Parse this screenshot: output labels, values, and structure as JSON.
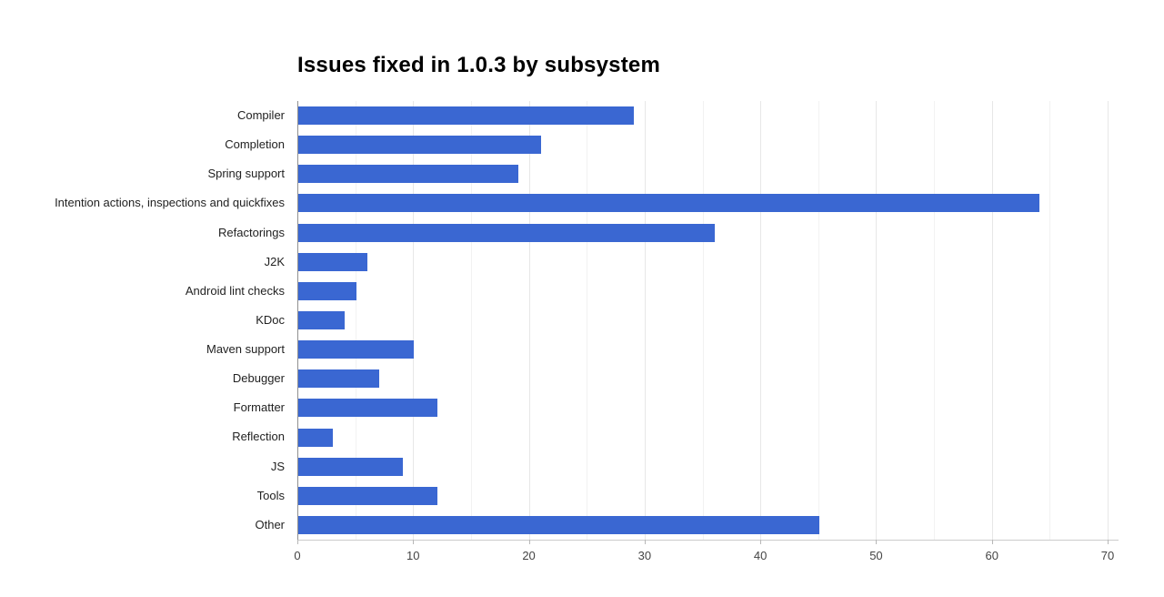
{
  "title": "Issues fixed in 1.0.3 by subsystem",
  "chart_data": {
    "type": "bar",
    "orientation": "horizontal",
    "title": "Issues fixed in 1.0.3 by subsystem",
    "categories": [
      "Compiler",
      "Completion",
      "Spring support",
      "Intention actions, inspections and quickfixes",
      "Refactorings",
      "J2K",
      "Android lint checks",
      "KDoc",
      "Maven support",
      "Debugger",
      "Formatter",
      "Reflection",
      "JS",
      "Tools",
      "Other"
    ],
    "values": [
      29,
      21,
      19,
      64,
      36,
      6,
      5,
      4,
      10,
      7,
      12,
      3,
      9,
      12,
      45
    ],
    "xlabel": "",
    "ylabel": "",
    "xlim": [
      0,
      70
    ],
    "x_ticks": [
      0,
      10,
      20,
      30,
      40,
      50,
      60,
      70
    ],
    "gridline_step": 5,
    "grid": true,
    "legend": "none",
    "colors": {
      "bar": "#3a67d2",
      "background": "#ffffff",
      "gridline_major": "#e7e7e7",
      "gridline_minor": "#f2f2f2",
      "axis_line": "#909090",
      "baseline": "#cccccc",
      "tick_label": "#444444",
      "category_label": "#222222",
      "title": "#000000"
    }
  }
}
